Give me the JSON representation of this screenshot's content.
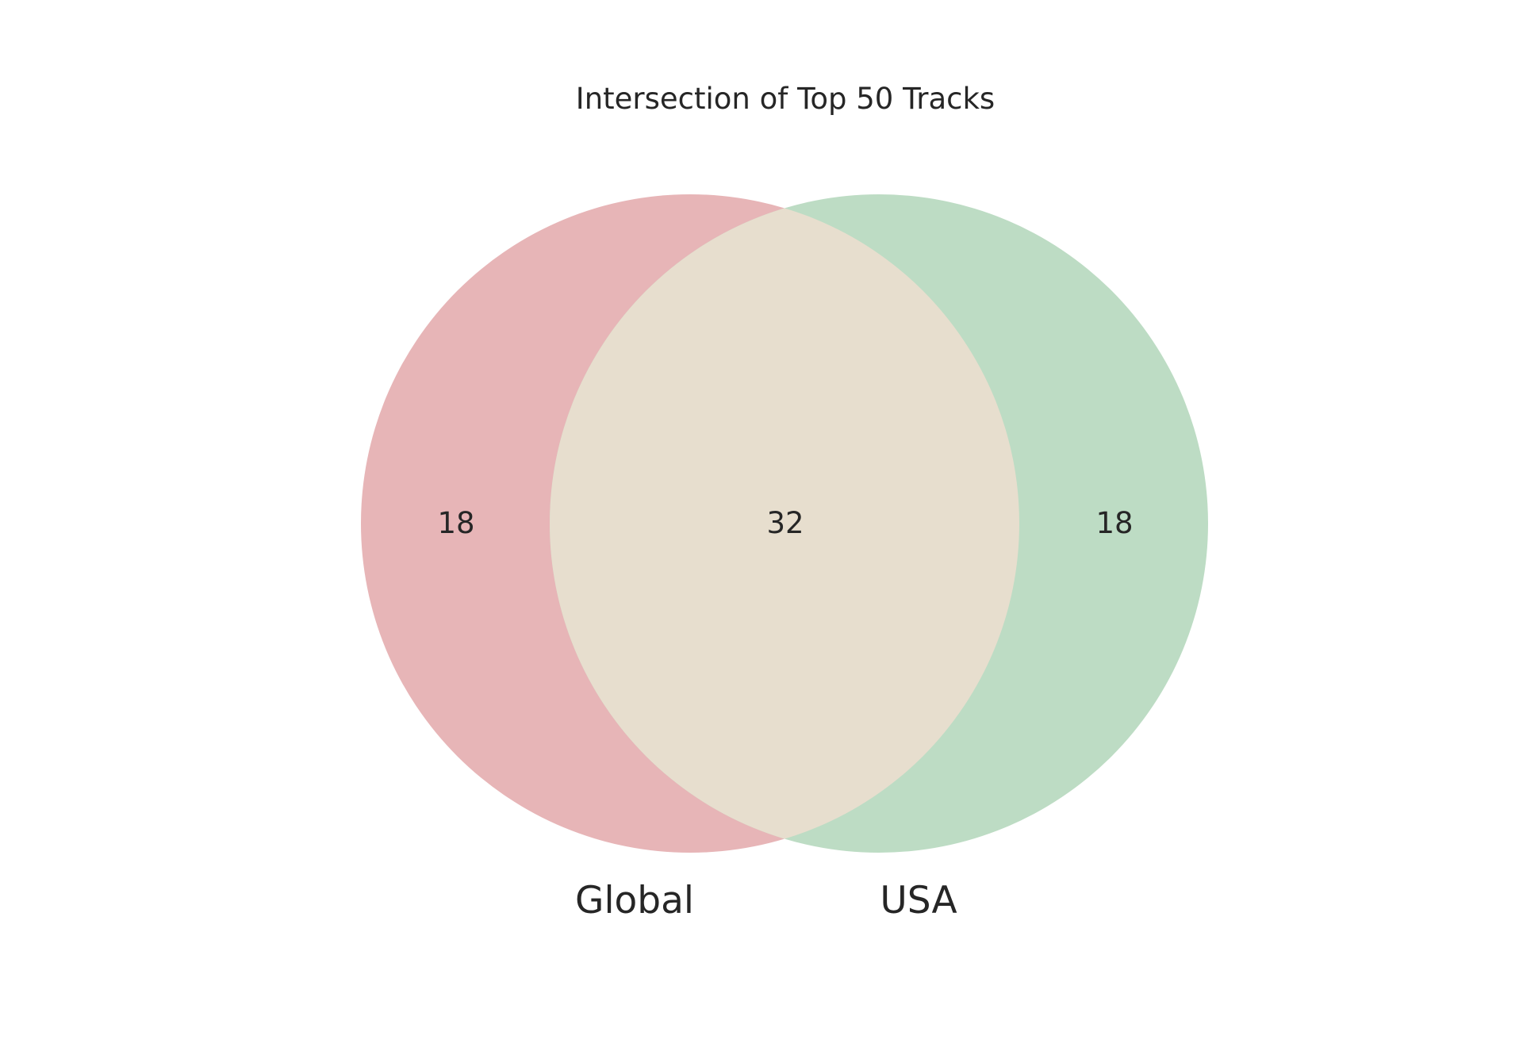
{
  "chart_data": {
    "type": "venn",
    "title": "Intersection of Top 50 Tracks",
    "sets": [
      {
        "name": "Global",
        "only": 18,
        "color": "#e7b5b7"
      },
      {
        "name": "USA",
        "only": 18,
        "color": "#bddcc4"
      }
    ],
    "intersection": 32,
    "intersection_color": "#e7dece"
  }
}
